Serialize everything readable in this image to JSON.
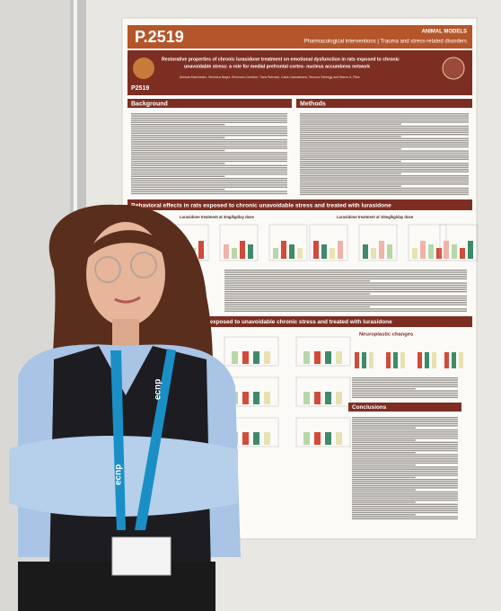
{
  "poster": {
    "code": "P.2519",
    "category": "ANIMAL MODELS",
    "topic": "Pharmacological interventions | Trauma and stress-related disorders",
    "badge_code": "P2519",
    "title_lines": [
      "Restorative properties of chronic lurasidone treatment on emotional dysfunction in rats exposed to chronic",
      "unavoidable stress: a role for medial prefrontal cortex- nucleus accumbens network"
    ],
    "authors": "Alessia Marchesini, Veronica Begni, Eleonora Corridori, Sara Sahrawi, Carla Cannabrava, Simona Schiegg and Marco A. Riva",
    "sections": [
      "Background",
      "Methods"
    ],
    "banner": "Behavioral effects in rats exposed to chronic unavoidable stress and treated with lurasidone",
    "panel_titles": [
      "Lurasidone treatment at 3mg/kg/day dose",
      "Lurasidone treatment at 10mg/kg/day dose"
    ],
    "lower_banner": "rats exposed to unavoidable chronic stress and treated with lurasidone",
    "side_sections": [
      "Neuroplastic changes",
      "Conclusions"
    ]
  },
  "lanyard": {
    "text": "ecnp"
  }
}
